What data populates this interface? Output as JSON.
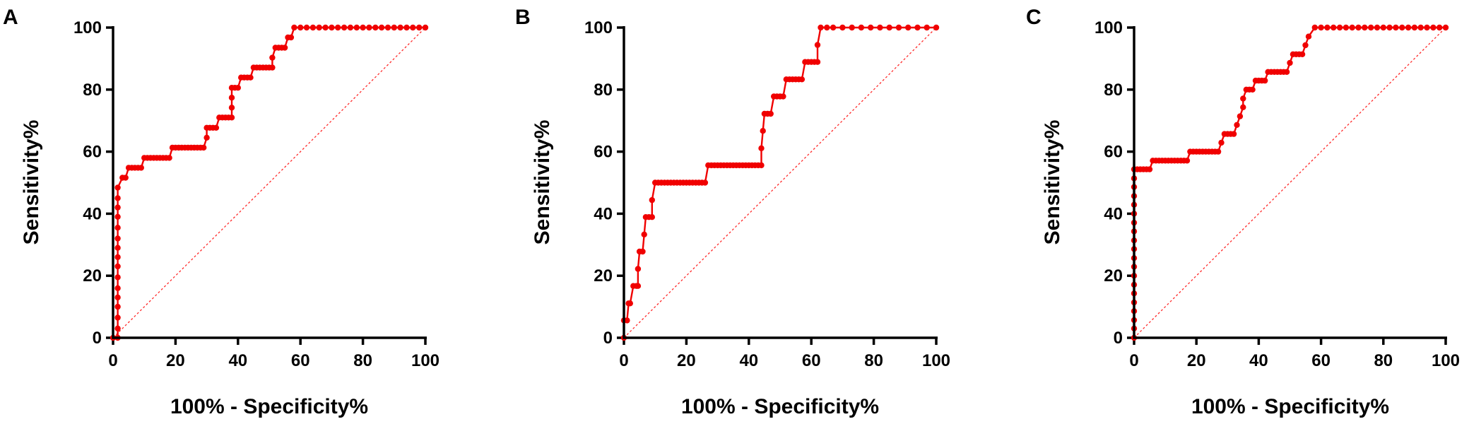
{
  "colors": {
    "curve": "#f00000",
    "reference": "#ff2a2a",
    "axis": "#000000"
  },
  "chart_data": [
    {
      "type": "line",
      "panel_label": "A",
      "xlabel": "100% - Specificity%",
      "ylabel": "Sensitivity%",
      "xlim": [
        0,
        100
      ],
      "ylim": [
        0,
        100
      ],
      "xticks": [
        0,
        20,
        40,
        60,
        80,
        100
      ],
      "yticks": [
        0,
        20,
        40,
        60,
        80,
        100
      ],
      "grid": false,
      "reference_line": [
        [
          0,
          0
        ],
        [
          100,
          100
        ]
      ],
      "series": [
        {
          "x": [
            0,
            1.5,
            1.5,
            1.5,
            1.5,
            1.5,
            1.5,
            1.5,
            1.5,
            1.5,
            1.5,
            1.5,
            1.5,
            1.5,
            1.5,
            1.5,
            1.5,
            3,
            4,
            5,
            6,
            7,
            8,
            9,
            10,
            11,
            12,
            13,
            14,
            15,
            16,
            17,
            18,
            19,
            20,
            21,
            22,
            23,
            24,
            25,
            26,
            27,
            28,
            29,
            30,
            30,
            31,
            32,
            33,
            34,
            35,
            36,
            37,
            38,
            38,
            38,
            38,
            39,
            40,
            41,
            42,
            43,
            44,
            45,
            46,
            47,
            48,
            49,
            50,
            51,
            51,
            52,
            53,
            54,
            55,
            56,
            57,
            58,
            60,
            62,
            64,
            66,
            68,
            70,
            72,
            74,
            76,
            78,
            80,
            82,
            84,
            86,
            88,
            90,
            92,
            94,
            96,
            98,
            100
          ],
          "y": [
            0,
            0,
            3,
            6.5,
            10,
            13,
            16,
            19.5,
            23,
            26,
            29,
            32,
            35.5,
            39,
            42,
            45,
            48.4,
            51.6,
            51.6,
            54.8,
            54.8,
            54.8,
            54.8,
            54.8,
            58,
            58,
            58,
            58,
            58,
            58,
            58,
            58,
            58,
            61.3,
            61.3,
            61.3,
            61.3,
            61.3,
            61.3,
            61.3,
            61.3,
            61.3,
            61.3,
            61.3,
            64.5,
            67.7,
            67.7,
            67.7,
            67.7,
            71,
            71,
            71,
            71,
            71,
            74.2,
            77.4,
            80.6,
            80.6,
            80.6,
            83.9,
            83.9,
            83.9,
            83.9,
            87.1,
            87.1,
            87.1,
            87.1,
            87.1,
            87.1,
            87.1,
            90.3,
            93.5,
            93.5,
            93.5,
            93.5,
            96.8,
            96.8,
            100,
            100,
            100,
            100,
            100,
            100,
            100,
            100,
            100,
            100,
            100,
            100,
            100,
            100,
            100,
            100,
            100,
            100,
            100,
            100,
            100,
            100
          ]
        }
      ]
    },
    {
      "type": "line",
      "panel_label": "B",
      "xlabel": "100% - Specificity%",
      "ylabel": "Sensitivity%",
      "xlim": [
        0,
        100
      ],
      "ylim": [
        0,
        100
      ],
      "xticks": [
        0,
        20,
        40,
        60,
        80,
        100
      ],
      "yticks": [
        0,
        20,
        40,
        60,
        80,
        100
      ],
      "grid": false,
      "reference_line": [
        [
          0,
          0
        ],
        [
          100,
          100
        ]
      ],
      "series": [
        {
          "x": [
            0,
            0,
            1,
            1.5,
            2,
            3,
            4,
            4.5,
            4.5,
            5,
            6,
            6.5,
            7,
            8,
            9,
            9,
            10,
            11,
            12,
            13,
            14,
            15,
            16,
            17,
            18,
            19,
            20,
            21,
            22,
            23,
            24,
            25,
            26,
            27,
            28,
            29,
            30,
            31,
            32,
            33,
            34,
            35,
            36,
            37,
            38,
            39,
            40,
            41,
            42,
            43,
            44,
            44,
            44.5,
            45,
            46,
            47,
            48,
            49,
            50,
            51,
            52,
            53,
            54,
            55,
            56,
            57,
            58,
            59,
            60,
            61,
            62,
            62,
            63,
            65,
            67,
            70,
            73,
            76,
            79,
            82,
            85,
            88,
            91,
            94,
            97,
            100
          ],
          "y": [
            0,
            5.6,
            5.6,
            11.1,
            11.1,
            16.7,
            16.7,
            16.7,
            22.2,
            27.8,
            27.8,
            33.3,
            38.9,
            38.9,
            38.9,
            44.4,
            50,
            50,
            50,
            50,
            50,
            50,
            50,
            50,
            50,
            50,
            50,
            50,
            50,
            50,
            50,
            50,
            50,
            55.6,
            55.6,
            55.6,
            55.6,
            55.6,
            55.6,
            55.6,
            55.6,
            55.6,
            55.6,
            55.6,
            55.6,
            55.6,
            55.6,
            55.6,
            55.6,
            55.6,
            55.6,
            61.1,
            66.7,
            72.2,
            72.2,
            72.2,
            77.8,
            77.8,
            77.8,
            77.8,
            83.3,
            83.3,
            83.3,
            83.3,
            83.3,
            83.3,
            88.9,
            88.9,
            88.9,
            88.9,
            88.9,
            94.4,
            100,
            100,
            100,
            100,
            100,
            100,
            100,
            100,
            100,
            100,
            100,
            100,
            100,
            100
          ]
        }
      ]
    },
    {
      "type": "line",
      "panel_label": "C",
      "xlabel": "100% - Specificity%",
      "ylabel": "Sensitivity%",
      "xlim": [
        0,
        100
      ],
      "ylim": [
        0,
        100
      ],
      "xticks": [
        0,
        20,
        40,
        60,
        80,
        100
      ],
      "yticks": [
        0,
        20,
        40,
        60,
        80,
        100
      ],
      "grid": false,
      "reference_line": [
        [
          0,
          0
        ],
        [
          100,
          100
        ]
      ],
      "series": [
        {
          "x": [
            0,
            0,
            0,
            0,
            0,
            0,
            0,
            0,
            0,
            0,
            0,
            0,
            0,
            0,
            0,
            0,
            0,
            0,
            0,
            0,
            1,
            2,
            3,
            4,
            5,
            6,
            7,
            8,
            9,
            10,
            11,
            12,
            13,
            14,
            15,
            16,
            17,
            18,
            19,
            20,
            21,
            22,
            23,
            24,
            25,
            26,
            27,
            28,
            29,
            30,
            31,
            32,
            33,
            34,
            35,
            35,
            36,
            37,
            38,
            39,
            40,
            41,
            42,
            43,
            44,
            45,
            46,
            47,
            48,
            49,
            50,
            51,
            52,
            53,
            54,
            55,
            56,
            58,
            60,
            62,
            64,
            66,
            68,
            70,
            72,
            74,
            76,
            78,
            80,
            82,
            84,
            86,
            88,
            90,
            92,
            94,
            96,
            98,
            100
          ],
          "y": [
            0,
            3,
            5.7,
            8.6,
            11.4,
            14.3,
            17.1,
            20,
            22.9,
            25.7,
            28.6,
            31.4,
            34.3,
            37.1,
            40,
            42.9,
            45.7,
            48.6,
            51.4,
            54.3,
            54.3,
            54.3,
            54.3,
            54.3,
            54.3,
            57.1,
            57.1,
            57.1,
            57.1,
            57.1,
            57.1,
            57.1,
            57.1,
            57.1,
            57.1,
            57.1,
            57.1,
            60,
            60,
            60,
            60,
            60,
            60,
            60,
            60,
            60,
            60,
            62.9,
            65.7,
            65.7,
            65.7,
            65.7,
            68.6,
            71.4,
            74.3,
            77.1,
            80,
            80,
            80,
            82.9,
            82.9,
            82.9,
            82.9,
            85.7,
            85.7,
            85.7,
            85.7,
            85.7,
            85.7,
            85.7,
            88.6,
            91.4,
            91.4,
            91.4,
            91.4,
            94.3,
            97.1,
            100,
            100,
            100,
            100,
            100,
            100,
            100,
            100,
            100,
            100,
            100,
            100,
            100,
            100,
            100,
            100,
            100,
            100,
            100,
            100,
            100,
            100
          ]
        }
      ]
    }
  ]
}
